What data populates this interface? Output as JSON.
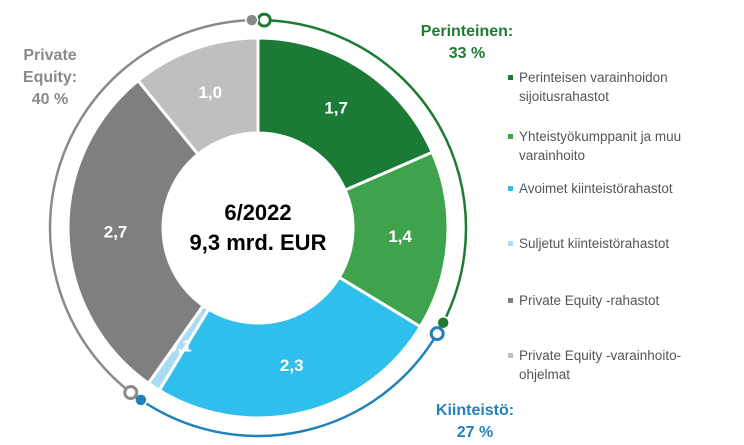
{
  "chart_data": {
    "type": "donut",
    "center_text": [
      "6/2022",
      "9,3 mrd. EUR"
    ],
    "categories": [
      "Perinteisen varainhoidon sijoitusrahastot",
      "Yhteistyökumppanit ja muu varainhoito",
      "Avoimet kiinteistörahastot",
      "Suljetut kiinteistörahastot",
      "Private Equity -rahastot",
      "Private Equity -varainhoito-ohjelmat"
    ],
    "values": [
      1.7,
      1.4,
      2.3,
      0.1,
      2.7,
      1.0
    ],
    "value_labels": [
      "1,7",
      "1,4",
      "2,3",
      "0,1",
      "2,7",
      "1,0"
    ],
    "colors": [
      "#1a7a36",
      "#3fa34d",
      "#2fbfec",
      "#a7dcf2",
      "#7f7f7f",
      "#bfbfbf"
    ],
    "groups": [
      {
        "label": [
          "Perinteinen:"
        ],
        "value": 33,
        "value_label": "33 %",
        "color": "#1e7b34"
      },
      {
        "label": [
          "Kiinteistö:"
        ],
        "value": 27,
        "value_label": "27 %",
        "color": "#1f82bd"
      },
      {
        "label": [
          "Private",
          "Equity:"
        ],
        "value": 40,
        "value_label": "40 %",
        "color": "#8a8a8a"
      }
    ]
  }
}
